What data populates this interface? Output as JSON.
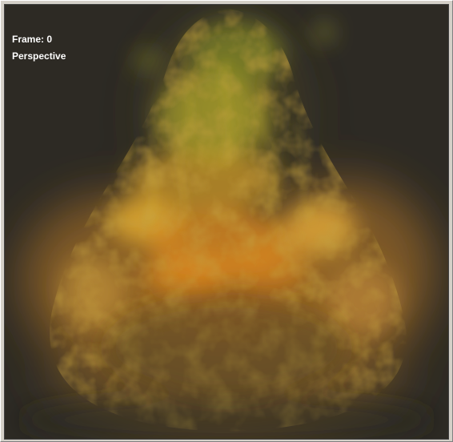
{
  "viewport": {
    "frame_label": "Frame: 0",
    "view_name": "Perspective"
  },
  "colors": {
    "background": "#2d2a24",
    "fire_core": "#e08a1e",
    "fire_mid": "#d8a030",
    "fire_top": "#b8b830",
    "label": "#ffffff"
  }
}
